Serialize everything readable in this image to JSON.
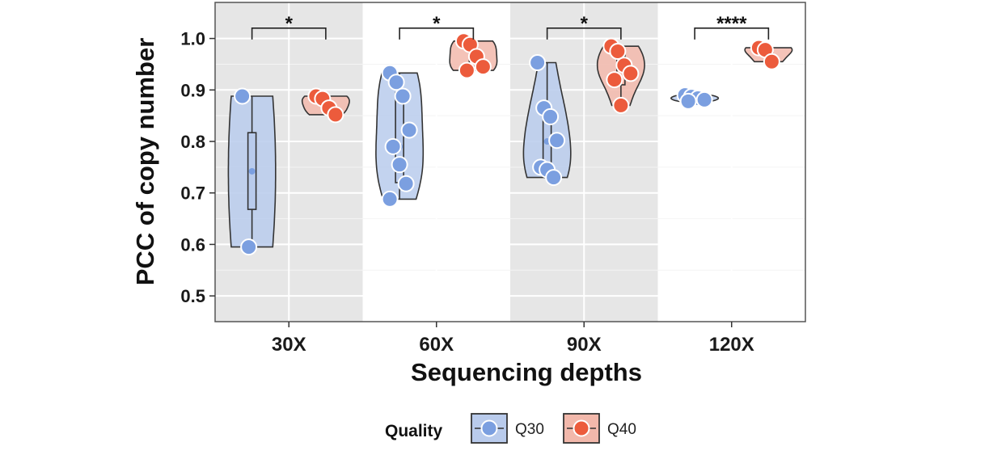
{
  "chart_data": {
    "type": "violin",
    "xlabel": "Sequencing depths",
    "ylabel": "PCC of copy number",
    "ylim": [
      0.45,
      1.07
    ],
    "yticks": [
      0.5,
      0.6,
      0.7,
      0.8,
      0.9,
      1.0
    ],
    "ytick_labels": [
      "0.5",
      "0.6",
      "0.7",
      "0.8",
      "0.9",
      "1.0"
    ],
    "categories": [
      "30X",
      "60X",
      "90X",
      "120X"
    ],
    "grid": true,
    "legend": {
      "title": "Quality",
      "position": "bottom"
    },
    "series": [
      {
        "name": "Q30",
        "color": "#7b9fe0",
        "fill": "#b9cbec",
        "points": [
          [
            0.888,
            0.595
          ],
          [
            0.933,
            0.915,
            0.888,
            0.822,
            0.79,
            0.755,
            0.718,
            0.688
          ],
          [
            0.953,
            0.865,
            0.848,
            0.802,
            0.75,
            0.745,
            0.73
          ],
          [
            0.89,
            0.887,
            0.884,
            0.881,
            0.878
          ]
        ],
        "box": [
          {
            "q1": 0.668,
            "median": 0.742,
            "q3": 0.817
          },
          {
            "q1": 0.72,
            "median": 0.79,
            "q3": 0.895
          },
          {
            "q1": 0.738,
            "median": 0.8,
            "q3": 0.858
          },
          {
            "q1": 0.882,
            "median": 0.886,
            "q3": 0.889
          }
        ]
      },
      {
        "name": "Q40",
        "color": "#ec5b3c",
        "fill": "#f2b8ab",
        "points": [
          [
            0.888,
            0.883,
            0.865,
            0.852
          ],
          [
            0.995,
            0.988,
            0.965,
            0.945,
            0.938
          ],
          [
            0.985,
            0.975,
            0.948,
            0.932,
            0.92,
            0.87
          ],
          [
            0.982,
            0.978,
            0.955
          ]
        ],
        "box": [
          {
            "q1": 0.86,
            "median": 0.875,
            "q3": 0.888
          },
          {
            "q1": 0.945,
            "median": 0.965,
            "q3": 0.985
          },
          {
            "q1": 0.91,
            "median": 0.945,
            "q3": 0.975
          },
          {
            "q1": 0.965,
            "median": 0.978,
            "q3": 0.982
          }
        ]
      }
    ],
    "significance": [
      "*",
      "*",
      "*",
      "****"
    ]
  }
}
